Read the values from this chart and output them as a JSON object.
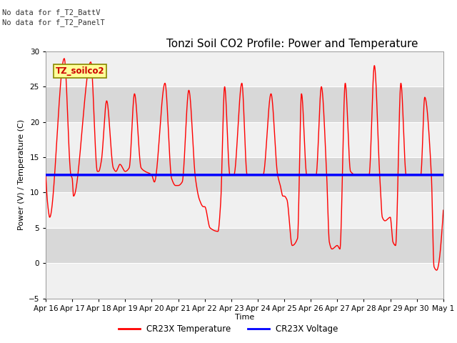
{
  "title": "Tonzi Soil CO2 Profile: Power and Temperature",
  "subtitle_lines": [
    "No data for f_T2_BattV",
    "No data for f_T2_PanelT"
  ],
  "xlabel": "Time",
  "ylabel": "Power (V) / Temperature (C)",
  "ylim": [
    -5,
    30
  ],
  "yticks": [
    -5,
    0,
    5,
    10,
    15,
    20,
    25,
    30
  ],
  "xlim": [
    0,
    15
  ],
  "xtick_labels": [
    "Apr 16",
    "Apr 17",
    "Apr 18",
    "Apr 19",
    "Apr 20",
    "Apr 21",
    "Apr 22",
    "Apr 23",
    "Apr 24",
    "Apr 25",
    "Apr 26",
    "Apr 27",
    "Apr 28",
    "Apr 29",
    "Apr 30",
    "May 1"
  ],
  "legend_label_box": "TZ_soilco2",
  "legend_entries": [
    "CR23X Temperature",
    "CR23X Voltage"
  ],
  "legend_colors": [
    "#ff0000",
    "#0000ff"
  ],
  "voltage_value": 12.5,
  "bg_color": "#ffffff",
  "plot_bg_color": "#d8d8d8",
  "band_color": "#f0f0f0",
  "temp_color": "#ff0000",
  "voltage_color": "#0000ff",
  "temp_linewidth": 1.0,
  "voltage_linewidth": 2.5,
  "title_fontsize": 11,
  "axis_fontsize": 8,
  "tick_fontsize": 7.5
}
